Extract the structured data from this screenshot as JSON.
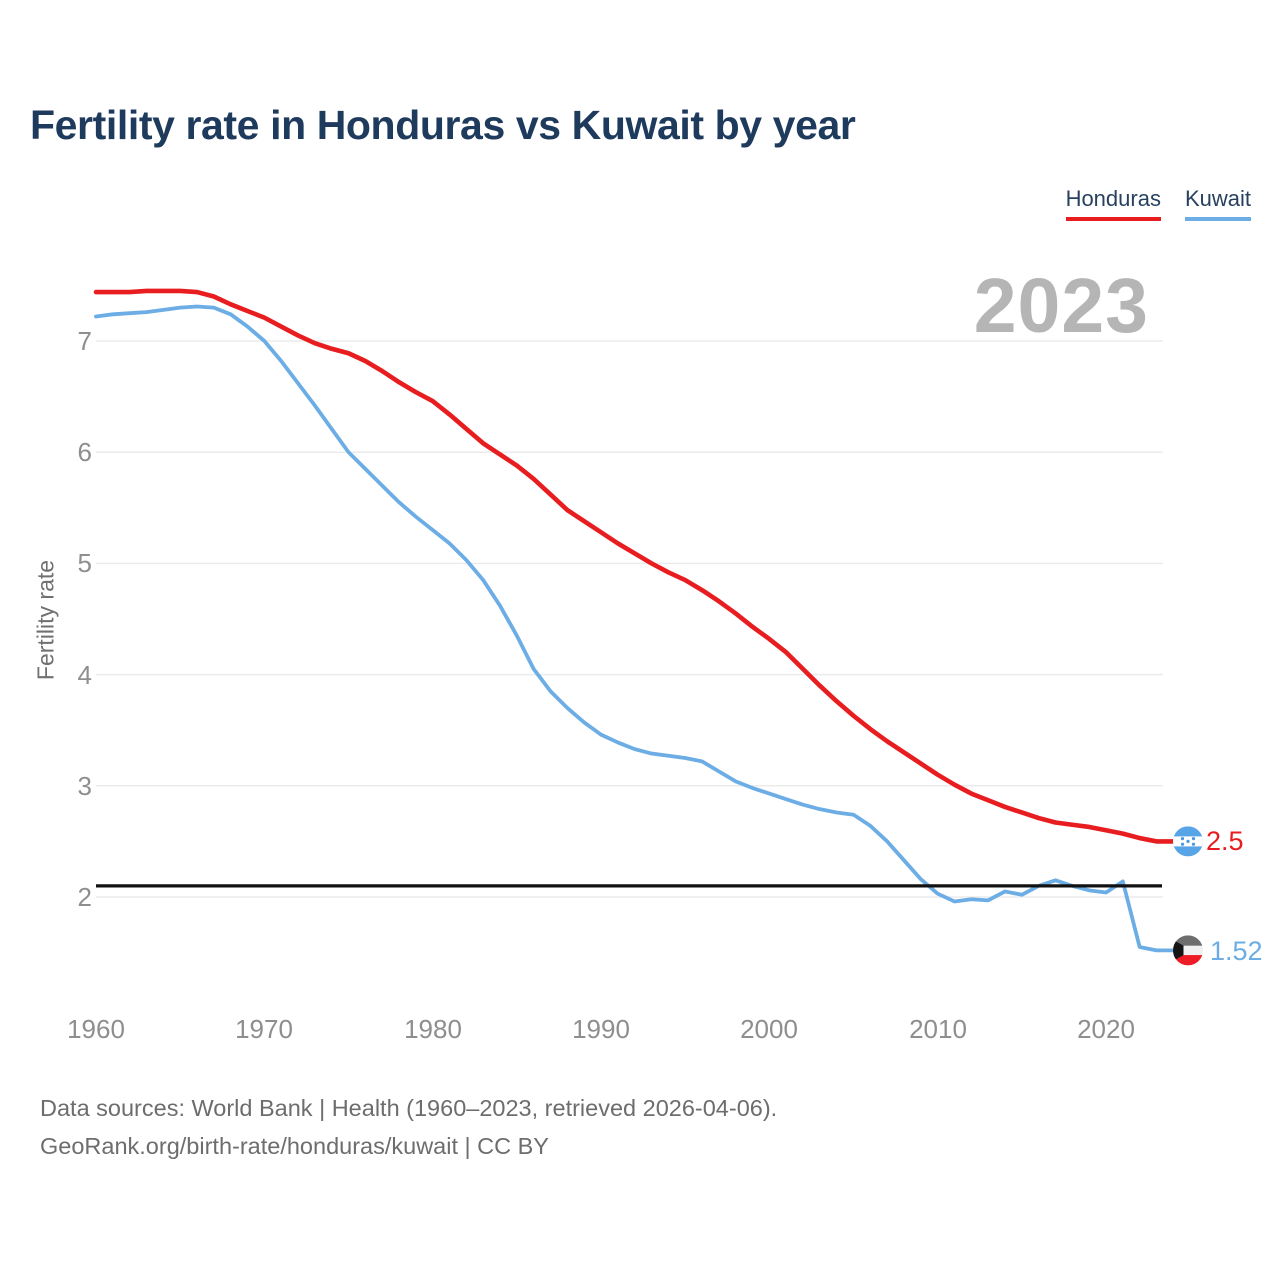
{
  "title": "Fertility rate in Honduras vs Kuwait by year",
  "legend": {
    "honduras": "Honduras",
    "kuwait": "Kuwait"
  },
  "watermark": "2023",
  "end_labels": {
    "honduras": "2.5",
    "kuwait": "1.52"
  },
  "footer": {
    "line1": "Data sources: World Bank | Health (1960–2023, retrieved 2026-04-06).",
    "line2": "GeoRank.org/birth-rate/honduras/kuwait | CC BY"
  },
  "colors": {
    "honduras_line": "#e81d20",
    "kuwait_line": "#6bade4",
    "title_navy": "#1e3a5c",
    "axis_gray": "#8e8e8e",
    "watermark_gray": "#b5b5b5",
    "gridline": "#ebebeb",
    "replacement_line": "#111111"
  },
  "chart_data": {
    "type": "line",
    "title": "Fertility rate in Honduras vs Kuwait by year",
    "xlabel": "",
    "ylabel": "Fertility rate",
    "xlim": [
      1960,
      2023
    ],
    "ylim": [
      1.45,
      7.55
    ],
    "grid": "horizontal",
    "legend_position": "top-right",
    "yticks": [
      7,
      6,
      5,
      4,
      3,
      2
    ],
    "xticks": [
      1960,
      1970,
      1980,
      1990,
      2000,
      2010,
      2020
    ],
    "reference_line": {
      "value": 2.1
    },
    "x": [
      1960,
      1961,
      1962,
      1963,
      1964,
      1965,
      1966,
      1967,
      1968,
      1969,
      1970,
      1971,
      1972,
      1973,
      1974,
      1975,
      1976,
      1977,
      1978,
      1979,
      1980,
      1981,
      1982,
      1983,
      1984,
      1985,
      1986,
      1987,
      1988,
      1989,
      1990,
      1991,
      1992,
      1993,
      1994,
      1995,
      1996,
      1997,
      1998,
      1999,
      2000,
      2001,
      2002,
      2003,
      2004,
      2005,
      2006,
      2007,
      2008,
      2009,
      2010,
      2011,
      2012,
      2013,
      2014,
      2015,
      2016,
      2017,
      2018,
      2019,
      2020,
      2021,
      2022,
      2023
    ],
    "series": [
      {
        "name": "Honduras",
        "color": "#e81d20",
        "flag": "honduras",
        "end_value": 2.5,
        "values": [
          7.44,
          7.44,
          7.44,
          7.45,
          7.45,
          7.45,
          7.44,
          7.4,
          7.33,
          7.27,
          7.21,
          7.13,
          7.05,
          6.98,
          6.93,
          6.89,
          6.82,
          6.73,
          6.63,
          6.54,
          6.46,
          6.34,
          6.21,
          6.08,
          5.98,
          5.88,
          5.76,
          5.62,
          5.48,
          5.38,
          5.28,
          5.18,
          5.09,
          5.0,
          4.92,
          4.85,
          4.76,
          4.66,
          4.55,
          4.43,
          4.32,
          4.2,
          4.05,
          3.9,
          3.76,
          3.63,
          3.51,
          3.4,
          3.3,
          3.2,
          3.1,
          3.01,
          2.93,
          2.87,
          2.81,
          2.76,
          2.71,
          2.67,
          2.65,
          2.63,
          2.6,
          2.57,
          2.53,
          2.5
        ]
      },
      {
        "name": "Kuwait",
        "color": "#6bade4",
        "flag": "kuwait",
        "end_value": 1.52,
        "values": [
          7.22,
          7.24,
          7.25,
          7.26,
          7.28,
          7.3,
          7.31,
          7.3,
          7.24,
          7.13,
          7.0,
          6.82,
          6.62,
          6.42,
          6.21,
          6.0,
          5.85,
          5.7,
          5.55,
          5.42,
          5.3,
          5.18,
          5.03,
          4.85,
          4.62,
          4.35,
          4.05,
          3.85,
          3.7,
          3.57,
          3.46,
          3.39,
          3.33,
          3.29,
          3.27,
          3.25,
          3.22,
          3.13,
          3.04,
          2.98,
          2.93,
          2.88,
          2.83,
          2.79,
          2.76,
          2.74,
          2.64,
          2.5,
          2.33,
          2.16,
          2.03,
          1.96,
          1.98,
          1.97,
          2.05,
          2.02,
          2.1,
          2.15,
          2.1,
          2.06,
          2.04,
          2.14,
          1.55,
          1.52
        ]
      }
    ]
  }
}
